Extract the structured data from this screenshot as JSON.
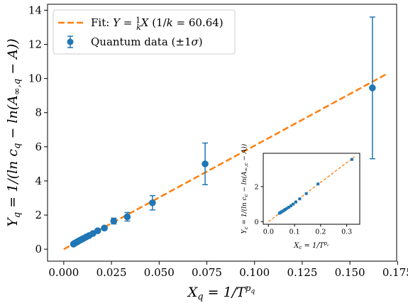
{
  "chart_data": [
    {
      "type": "scatter",
      "xlabel": "X_q = 1/T^{p_q}",
      "ylabel": "Y_q = 1/(ln c_q − ln(A_{∞,q} − A))",
      "xlim": [
        -0.0085,
        0.1745
      ],
      "ylim": [
        -0.7,
        14.35
      ],
      "xticks": [
        0.0,
        0.025,
        0.05,
        0.075,
        0.1,
        0.125,
        0.15,
        0.175
      ],
      "xtick_labels": [
        "0.000",
        "0.025",
        "0.050",
        "0.075",
        "0.100",
        "0.125",
        "0.150",
        "0.175"
      ],
      "yticks": [
        0,
        2,
        4,
        6,
        8,
        10,
        12,
        14
      ],
      "ytick_labels": [
        "0",
        "2",
        "4",
        "6",
        "8",
        "10",
        "12",
        "14"
      ],
      "grid": false,
      "legend_position": "top-left",
      "colors": {
        "data": "#1f77b4",
        "fit": "#ff7f0e"
      },
      "series": [
        {
          "name": "Fit: Y = (1/k)X (1/k = 60.64)",
          "kind": "line",
          "style": "dashed",
          "x": [
            0.0,
            0.17
          ],
          "y": [
            0.0,
            10.31
          ]
        },
        {
          "name": "Quantum data (±1σ)",
          "kind": "errorbar",
          "x": [
            0.0051,
            0.0056,
            0.0061,
            0.0066,
            0.0072,
            0.0078,
            0.0086,
            0.0095,
            0.0105,
            0.0118,
            0.0133,
            0.0153,
            0.0178,
            0.0213,
            0.0262,
            0.0333,
            0.0465,
            0.0741,
            0.1618
          ],
          "y": [
            0.3,
            0.34,
            0.37,
            0.4,
            0.44,
            0.48,
            0.53,
            0.58,
            0.64,
            0.72,
            0.8,
            0.92,
            1.08,
            1.24,
            1.65,
            1.9,
            2.72,
            5.0,
            9.45
          ],
          "yerr": [
            0.03,
            0.03,
            0.03,
            0.04,
            0.04,
            0.04,
            0.05,
            0.05,
            0.05,
            0.05,
            0.06,
            0.07,
            0.08,
            0.1,
            0.17,
            0.25,
            0.42,
            1.22,
            4.15
          ]
        }
      ]
    },
    {
      "type": "scatter",
      "role": "inset",
      "xlabel": "X_c = 1/T^{p_c}",
      "ylabel": "Y_c = 1/(ln c_c − ln(A_{∞,c} − A))",
      "xlim": [
        -0.02,
        0.35
      ],
      "ylim": [
        -0.15,
        3.9
      ],
      "xticks": [
        0.0,
        0.1,
        0.2,
        0.3
      ],
      "xtick_labels": [
        "0.0",
        "0.1",
        "0.2",
        "0.3"
      ],
      "yticks": [
        0,
        2
      ],
      "ytick_labels": [
        "0",
        "2"
      ],
      "grid": false,
      "series": [
        {
          "kind": "line",
          "style": "dashed",
          "x": [
            0.0,
            0.33
          ],
          "y": [
            0.0,
            3.7
          ]
        },
        {
          "kind": "scatter",
          "x": [
            0.042,
            0.046,
            0.05,
            0.055,
            0.06,
            0.065,
            0.071,
            0.078,
            0.086,
            0.095,
            0.105,
            0.12,
            0.145,
            0.19,
            0.32
          ],
          "y": [
            0.48,
            0.52,
            0.56,
            0.6,
            0.65,
            0.7,
            0.76,
            0.82,
            0.9,
            1.0,
            1.12,
            1.3,
            1.6,
            2.15,
            3.55
          ]
        }
      ]
    }
  ]
}
